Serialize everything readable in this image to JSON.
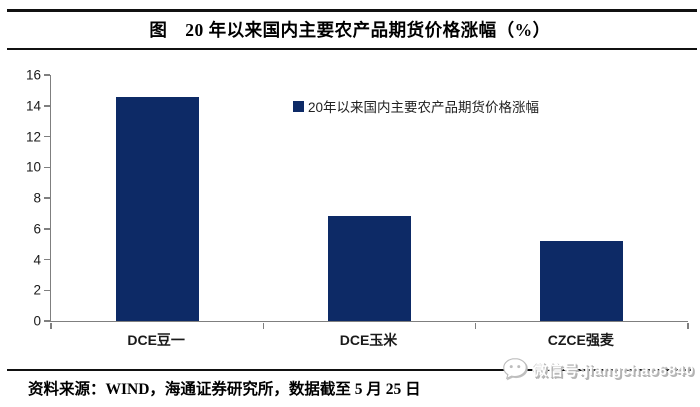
{
  "title": "图　20 年以来国内主要农产品期货价格涨幅（%）",
  "chart_data": {
    "type": "bar",
    "title": "图 20 年以来国内主要农产品期货价格涨幅（%）",
    "categories": [
      "DCE豆一",
      "DCE玉米",
      "CZCE强麦"
    ],
    "values": [
      14.6,
      6.8,
      5.2
    ],
    "legend": "20年以来国内主要农产品期货价格涨幅",
    "legend_position": "top-right",
    "xlabel": "",
    "ylabel": "",
    "ylim": [
      0,
      16
    ],
    "ytick_step": 2,
    "grid": false,
    "bar_color": "#0d2a66",
    "axis_color": "#7f7f7f"
  },
  "footer": {
    "source": "资料来源：WIND，海通证券研究所，数据截至 5 月 25 日"
  },
  "watermark": {
    "icon": "wechat-icon",
    "text": "微信号:jiangchao6840"
  }
}
